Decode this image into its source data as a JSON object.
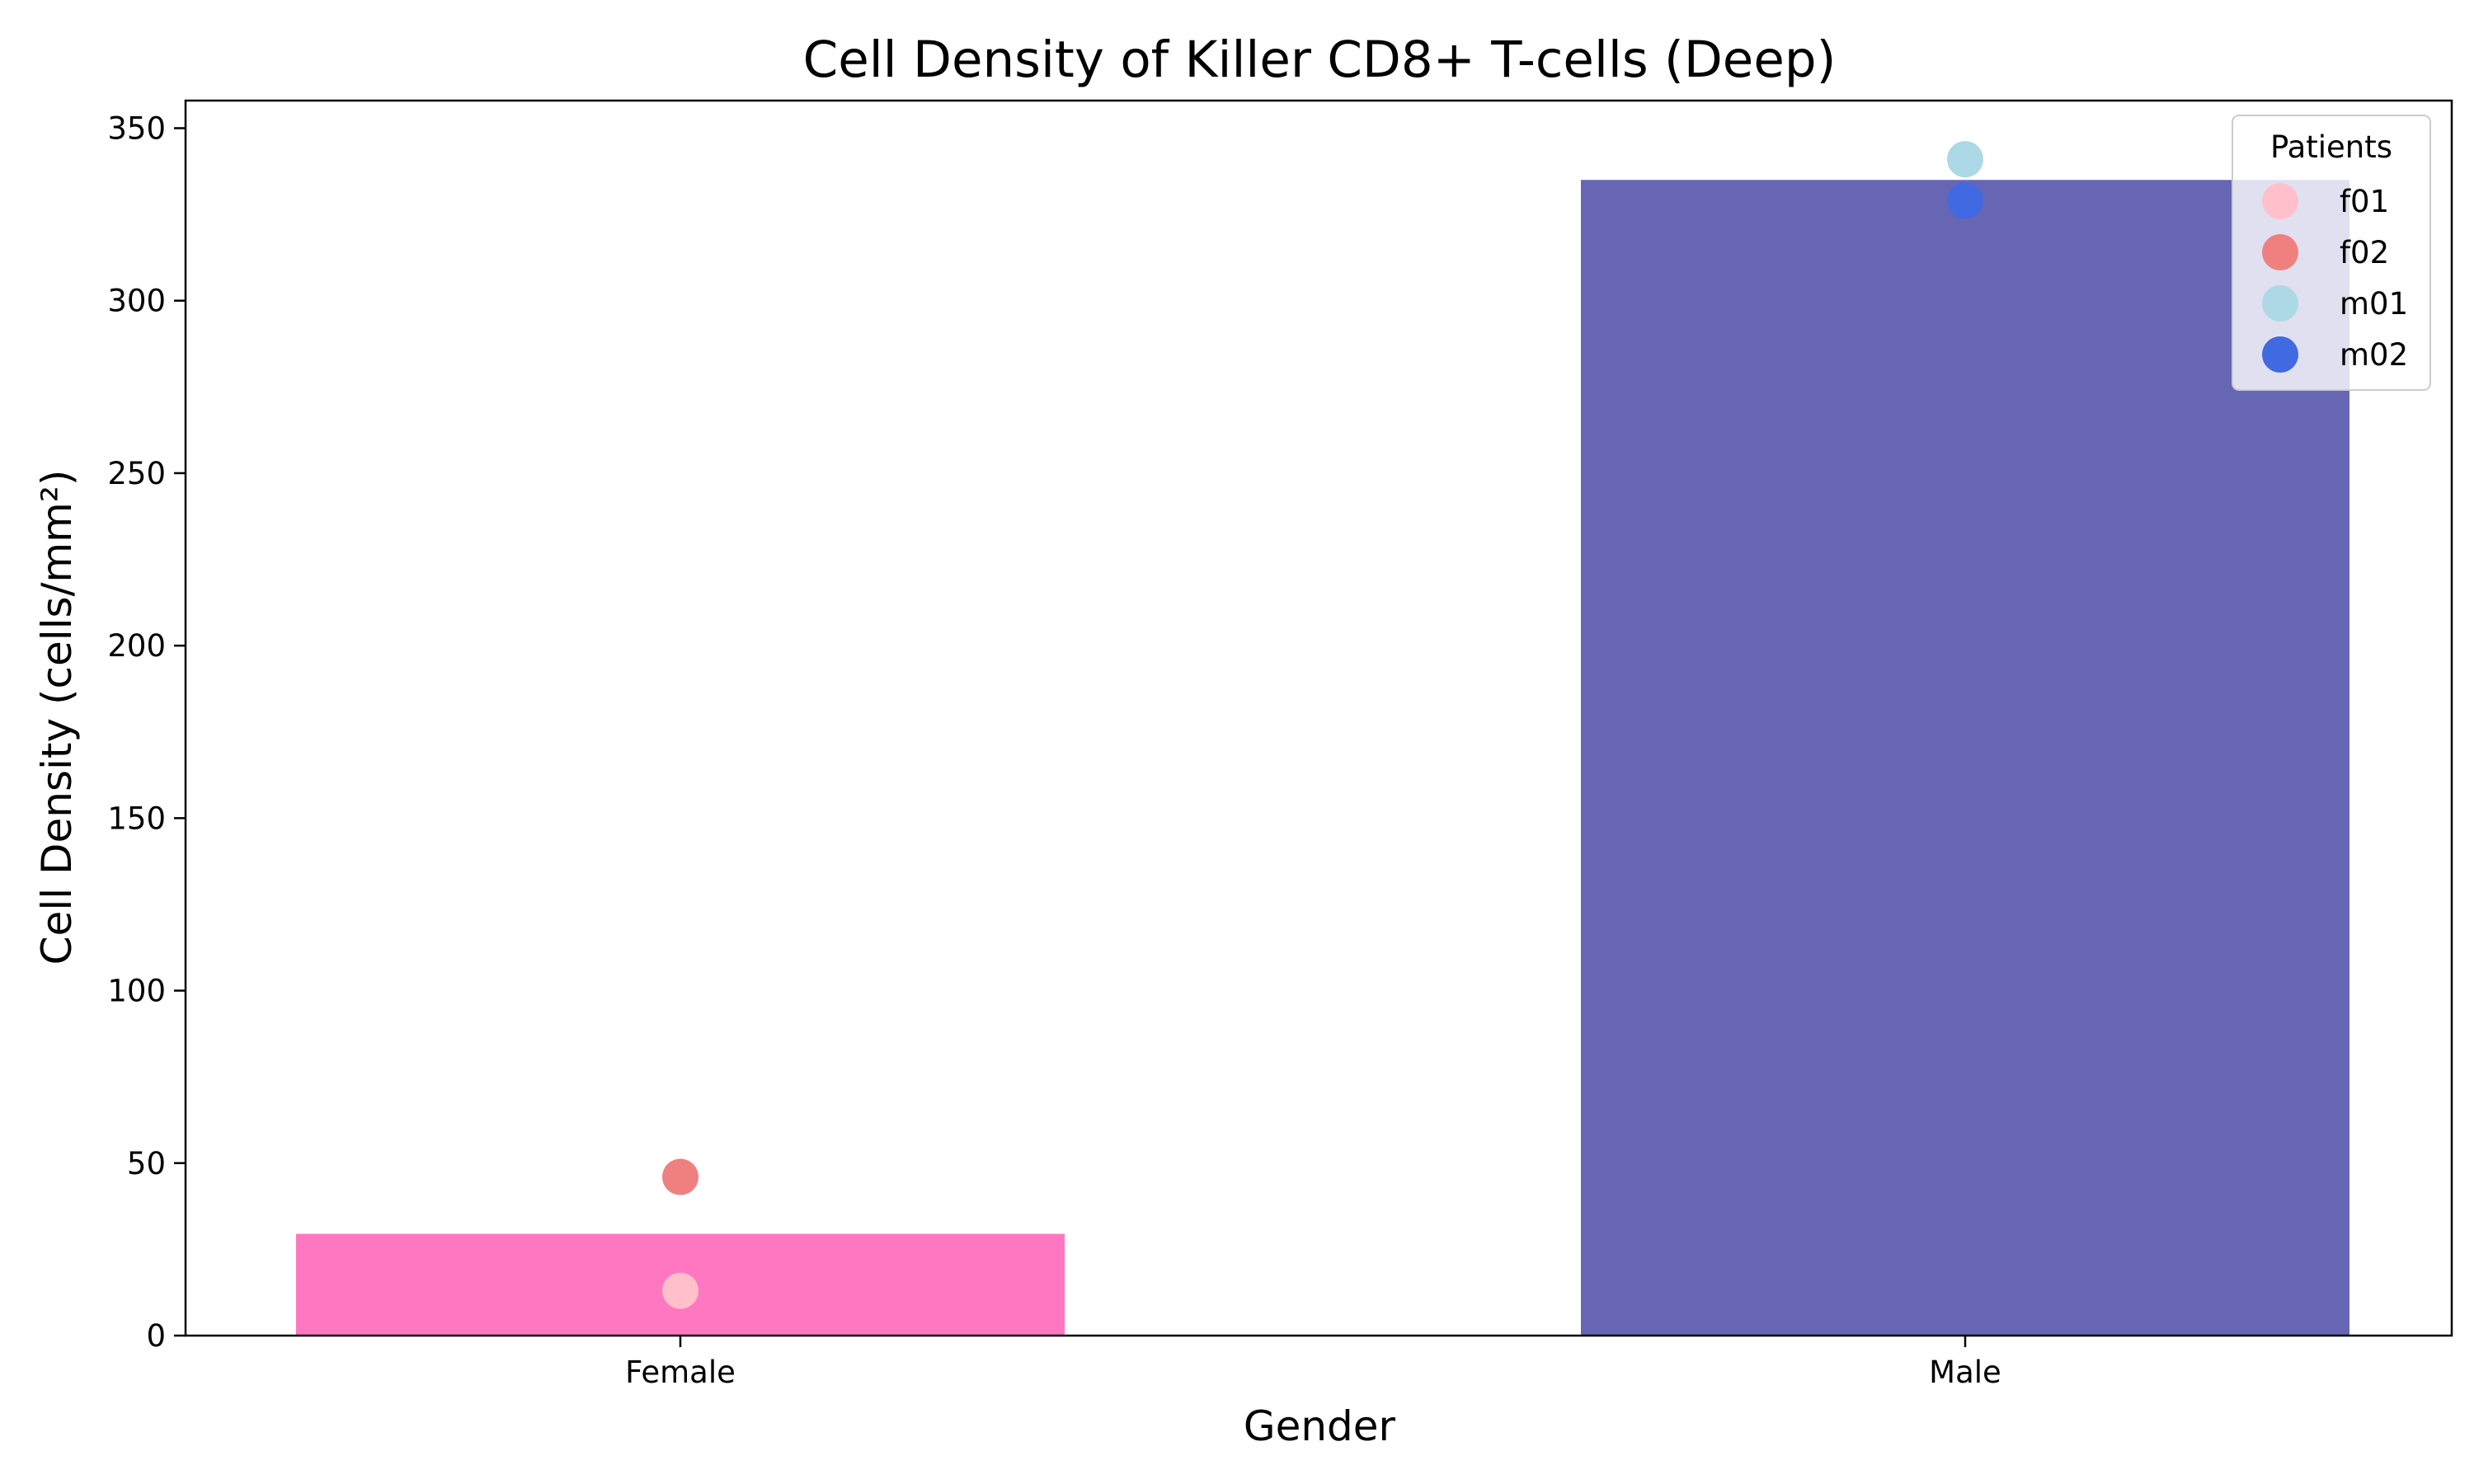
{
  "chart_data": {
    "type": "bar",
    "title": "Cell Density of Killer CD8+ T-cells (Deep)",
    "xlabel": "Gender",
    "ylabel": "Cell Density (cells/mm²)",
    "categories": [
      "Female",
      "Male"
    ],
    "values": [
      29.5,
      335
    ],
    "bar_colors": [
      "#ff77c0",
      "#6666b5"
    ],
    "ylim": [
      0,
      358
    ],
    "yticks": [
      0,
      50,
      100,
      150,
      200,
      250,
      300,
      350
    ],
    "grid": false,
    "points": [
      {
        "patient": "f01",
        "category": "Female",
        "value": 13,
        "color": "#ffc0cb"
      },
      {
        "patient": "f02",
        "category": "Female",
        "value": 46,
        "color": "#f08080"
      },
      {
        "patient": "m01",
        "category": "Male",
        "value": 341,
        "color": "#add8e6"
      },
      {
        "patient": "m02",
        "category": "Male",
        "value": 329,
        "color": "#4169e1"
      }
    ],
    "legend": {
      "title": "Patients",
      "placement": "top-right",
      "entries": [
        {
          "label": "f01",
          "color": "#ffc0cb"
        },
        {
          "label": "f02",
          "color": "#f08080"
        },
        {
          "label": "m01",
          "color": "#add8e6"
        },
        {
          "label": "m02",
          "color": "#4169e1"
        }
      ]
    }
  }
}
